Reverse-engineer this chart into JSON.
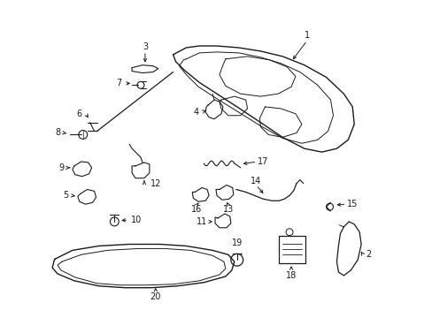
{
  "bg_color": "#ffffff",
  "line_color": "#1a1a1a",
  "fig_w": 4.89,
  "fig_h": 3.6,
  "dpi": 100
}
